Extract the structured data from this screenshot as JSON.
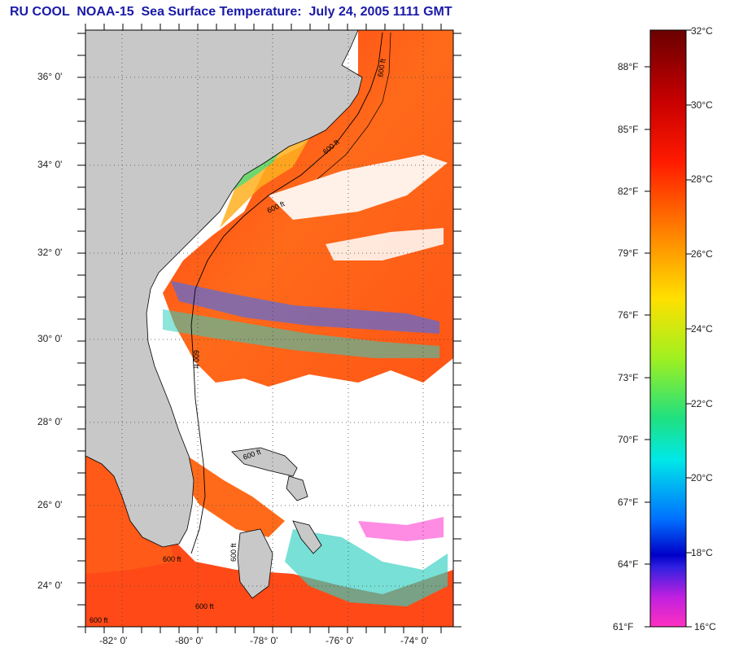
{
  "title": "RU COOL  NOAA-15  Sea Surface Temperature:  July 24, 2005 1111 GMT",
  "map": {
    "latitude_labels": [
      "36° 0'",
      "34° 0'",
      "32° 0'",
      "30° 0'",
      "28° 0'",
      "26° 0'",
      "24° 0'"
    ],
    "longitude_labels": [
      "-82° 0'",
      "-80° 0'",
      "-78° 0'",
      "-76° 0'",
      "-74° 0'"
    ],
    "contour_labels": [
      "600 ft",
      "600 ft",
      "600 ft",
      "600 ft",
      "600 ft",
      "600 ft",
      "600 ft",
      "600 ft",
      "600 ft"
    ]
  },
  "colorbar": {
    "celsius_labels": [
      "32°C",
      "30°C",
      "28°C",
      "26°C",
      "24°C",
      "22°C",
      "20°C",
      "18°C",
      "16°C"
    ],
    "fahrenheit_labels": [
      "88°F",
      "85°F",
      "82°F",
      "79°F",
      "76°F",
      "73°F",
      "70°F",
      "67°F",
      "64°F",
      "61°F"
    ]
  },
  "colors": {
    "title": "#1a1aa8",
    "land": "#c8c8c8",
    "warm_water": "#ff4a1a",
    "cloud_mask": "#ffffff"
  }
}
